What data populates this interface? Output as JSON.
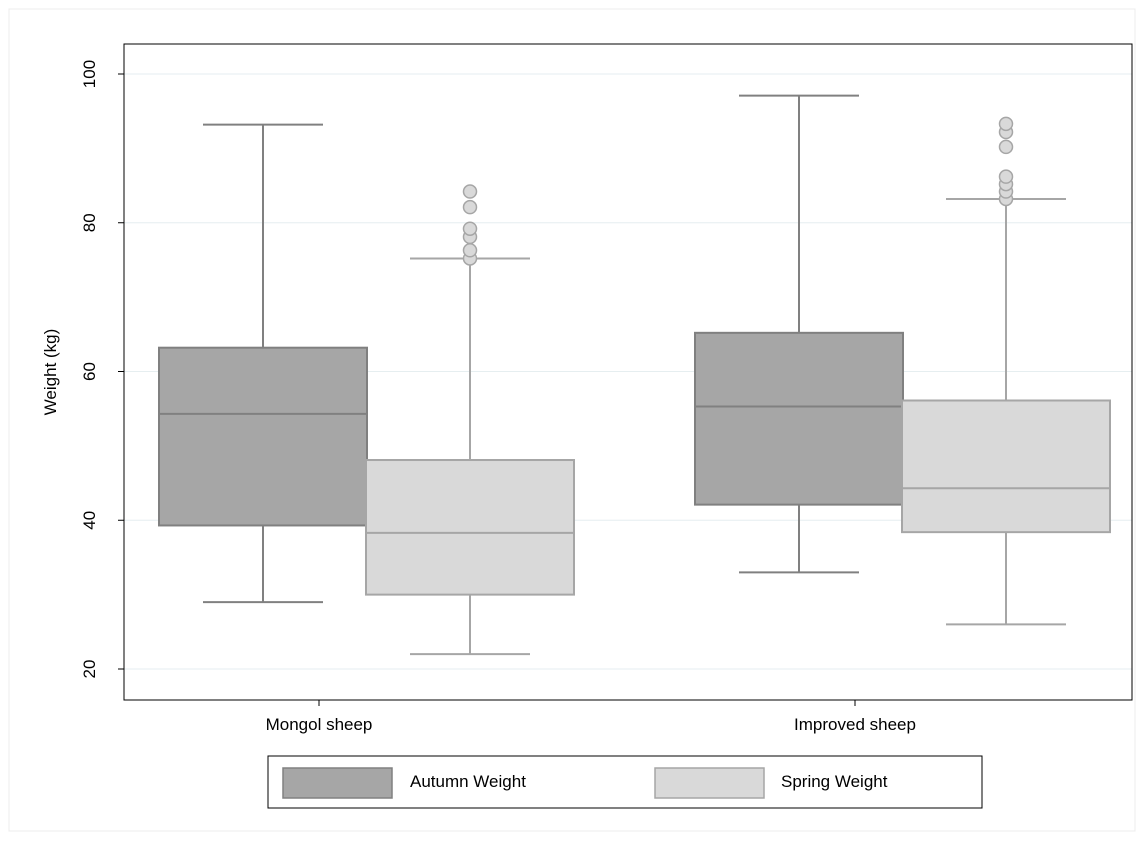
{
  "chart_data": {
    "type": "box",
    "categories": [
      "Mongol sheep",
      "Improved sheep"
    ],
    "ylabel": "Weight (kg)",
    "xlabel": "",
    "ylim": [
      20,
      104
    ],
    "yticks": [
      20,
      40,
      60,
      80,
      100
    ],
    "grid": true,
    "legend_position": "bottom",
    "series": [
      {
        "name": "Autumn Weight",
        "color": "#a6a6a6",
        "stroke": "#808080",
        "boxes": [
          {
            "whisker_low": 29,
            "q1": 39.3,
            "median": 54.3,
            "q3": 63.2,
            "whisker_high": 93.2,
            "outliers": []
          },
          {
            "whisker_low": 33,
            "q1": 42.1,
            "median": 55.3,
            "q3": 65.2,
            "whisker_high": 97.1,
            "outliers": []
          }
        ]
      },
      {
        "name": "Spring Weight",
        "color": "#d9d9d9",
        "stroke": "#a6a6a6",
        "boxes": [
          {
            "whisker_low": 22,
            "q1": 30,
            "median": 38.3,
            "q3": 48.1,
            "whisker_high": 75.2,
            "outliers": [
              75.2,
              76.3,
              78.1,
              79.2,
              82.1,
              84.2
            ]
          },
          {
            "whisker_low": 26,
            "q1": 38.4,
            "median": 44.3,
            "q3": 56.1,
            "whisker_high": 83.2,
            "outliers": [
              83.2,
              84.2,
              85.2,
              86.2,
              90.2,
              92.2,
              93.3
            ]
          }
        ]
      }
    ]
  }
}
